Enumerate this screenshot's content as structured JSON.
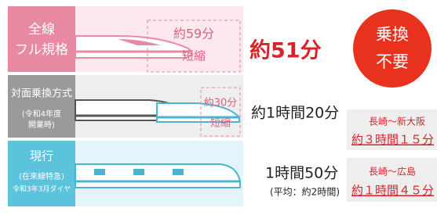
{
  "rows": [
    {
      "label_lines": [
        "全線",
        "フル規格"
      ],
      "saving": [
        "約59分",
        "短縮"
      ],
      "time": "約51分"
    },
    {
      "label_title": "対面乗換方式",
      "label_lines": [
        "(令和4年度",
        "開業時)"
      ],
      "saving": [
        "約30分",
        "短縮"
      ],
      "time": "約1時間20分"
    },
    {
      "label_title": "現行",
      "label_lines": [
        "(在来線特急)",
        "令和3年3月ダイヤ"
      ],
      "time": "1時間50分",
      "note": "(平均：約2時間)"
    }
  ],
  "badge": [
    "乗換",
    "不要"
  ],
  "routes": [
    {
      "name": "長崎～新大阪",
      "time": "約３時間１５分"
    },
    {
      "name": "長崎～広島",
      "time": "約１時間４５分"
    }
  ]
}
